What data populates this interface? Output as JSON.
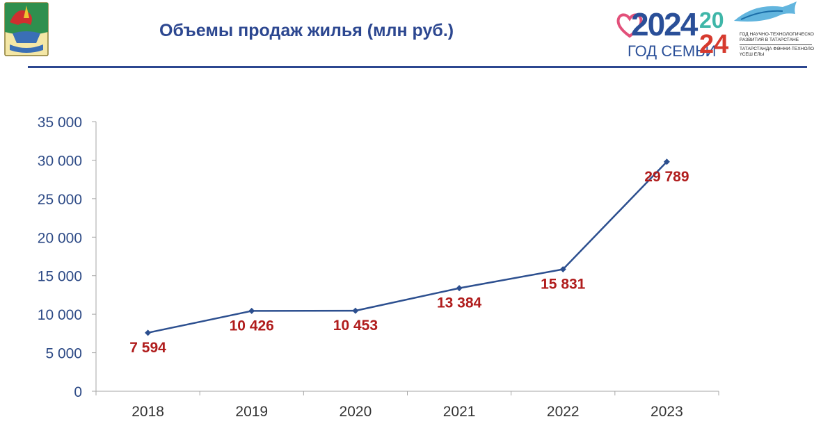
{
  "header": {
    "title": "Объемы продаж жилья (млн руб.)",
    "brand": {
      "year": "2024",
      "family_year": "ГОД СЕМЬИ",
      "year2_top": "20",
      "year2_bottom": "24",
      "tagline_ru_1": "ГОД НАУЧНО-ТЕХНОЛОГИЧЕСКОГО",
      "tagline_ru_2": "РАЗВИТИЯ В ТАТАРСТАНЕ",
      "tagline_tt_1": "ТАТАРСТАНДА ФӘННИ-ТЕХНОЛОГИК",
      "tagline_tt_2": "ҮСЕШ ЕЛЫ"
    }
  },
  "colors": {
    "title": "#2c4790",
    "line": "#2c4f8f",
    "data_label": "#b01c1c",
    "axis": "#a6a6a6",
    "y_tick": "#2d4a86",
    "x_tick": "#333333"
  },
  "chart_data": {
    "type": "line",
    "title": "",
    "xlabel": "",
    "ylabel": "",
    "categories": [
      "2018",
      "2019",
      "2020",
      "2021",
      "2022",
      "2023"
    ],
    "values": [
      7594,
      10426,
      10453,
      13384,
      15831,
      29789
    ],
    "value_labels": [
      "7 594",
      "10 426",
      "10 453",
      "13 384",
      "15 831",
      "29 789"
    ],
    "label_position": "below",
    "ylim": [
      0,
      35000
    ],
    "y_ticks": [
      0,
      5000,
      10000,
      15000,
      20000,
      25000,
      30000,
      35000
    ],
    "y_tick_labels": [
      "0",
      "5 000",
      "10 000",
      "15 000",
      "20 000",
      "25 000",
      "30 000",
      "35 000"
    ],
    "grid": false,
    "legend": "none",
    "marker": "diamond"
  }
}
